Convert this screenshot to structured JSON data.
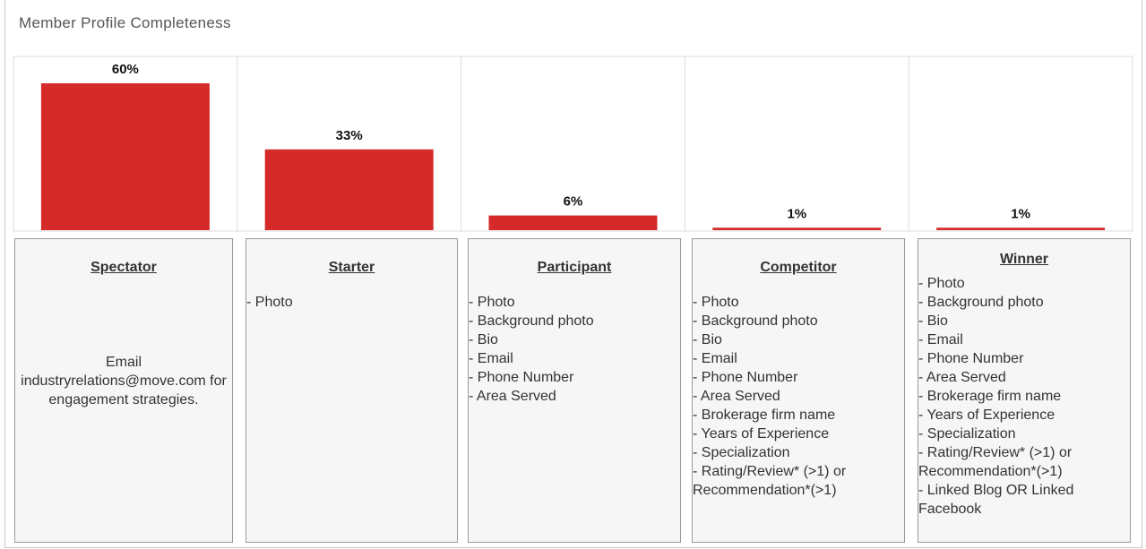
{
  "header": {
    "title": "Member Profile Completeness"
  },
  "chart_data": {
    "type": "bar",
    "categories": [
      "Spectator",
      "Starter",
      "Participant",
      "Competitor",
      "Winner"
    ],
    "values": [
      60,
      33,
      6,
      1,
      1
    ],
    "value_labels": [
      "60%",
      "33%",
      "6%",
      "1%",
      "1%"
    ],
    "color": "#d52a2a"
  },
  "cards": [
    {
      "note": "Email industryrelations@move.com for engagement strategies."
    },
    {
      "items": [
        "- Photo"
      ]
    },
    {
      "items": [
        "- Photo",
        "- Background photo",
        "- Bio",
        "- Email",
        "- Phone Number",
        "- Area Served"
      ]
    },
    {
      "items": [
        "- Photo",
        "- Background photo",
        "- Bio",
        "- Email",
        "- Phone Number",
        "- Area Served",
        "- Brokerage firm name",
        "- Years of Experience",
        "- Specialization",
        "- Rating/Review* (>1) or Recommendation*(>1)"
      ]
    },
    {
      "items": [
        "- Photo",
        "- Background photo",
        "- Bio",
        "- Email",
        "- Phone Number",
        "- Area Served",
        "- Brokerage firm name",
        "- Years of Experience",
        "- Specialization",
        "- Rating/Review* (>1) or Recommendation*(>1)",
        "- Linked Blog OR Linked Facebook"
      ]
    }
  ]
}
